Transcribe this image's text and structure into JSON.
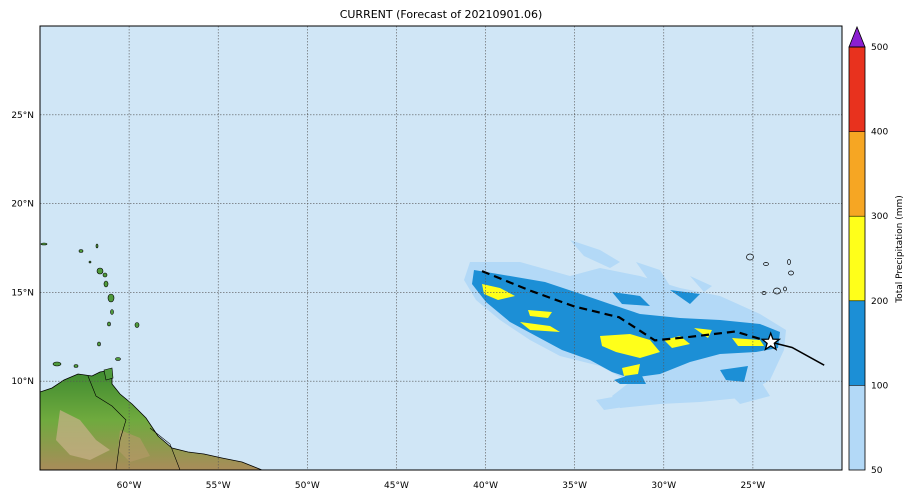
{
  "title": "CURRENT (Forecast of 20210901.06)",
  "map": {
    "lon_range": [
      -65,
      -20
    ],
    "lat_range": [
      5,
      30
    ],
    "lon_ticks": [
      "60°W",
      "55°W",
      "50°W",
      "45°W",
      "40°W",
      "35°W",
      "30°W",
      "25°W"
    ],
    "lon_tick_values": [
      -60,
      -55,
      -50,
      -45,
      -40,
      -35,
      -30,
      -25
    ],
    "lat_ticks": [
      "25°N",
      "20°N",
      "15°N",
      "10°N"
    ],
    "lat_tick_values": [
      25,
      20,
      15,
      10
    ],
    "ocean_color": "#d0e6f6",
    "land_color": "#4f9a3c",
    "gridlines": true
  },
  "track": {
    "current_position": [
      -24.0,
      12.2
    ],
    "forecast_future": [
      [
        -24.0,
        12.2
      ],
      [
        -22.8,
        11.9
      ],
      [
        -21.0,
        10.9
      ]
    ],
    "history_dashed": [
      [
        -40.2,
        16.2
      ],
      [
        -37.5,
        15.1
      ],
      [
        -35,
        14.2
      ],
      [
        -32.5,
        13.6
      ],
      [
        -30.5,
        12.3
      ],
      [
        -28.5,
        12.5
      ],
      [
        -26,
        12.8
      ],
      [
        -24.0,
        12.2
      ]
    ]
  },
  "colorbar": {
    "label": "Total Precipitation (mm)",
    "tick_labels": [
      "50",
      "100",
      "200",
      "300",
      "400",
      "500"
    ],
    "colors": [
      "#b3d9f7",
      "#1c8fd6",
      "#ffff1a",
      "#f6a623",
      "#e8321e"
    ],
    "extend_color": "#8b1fd1"
  }
}
